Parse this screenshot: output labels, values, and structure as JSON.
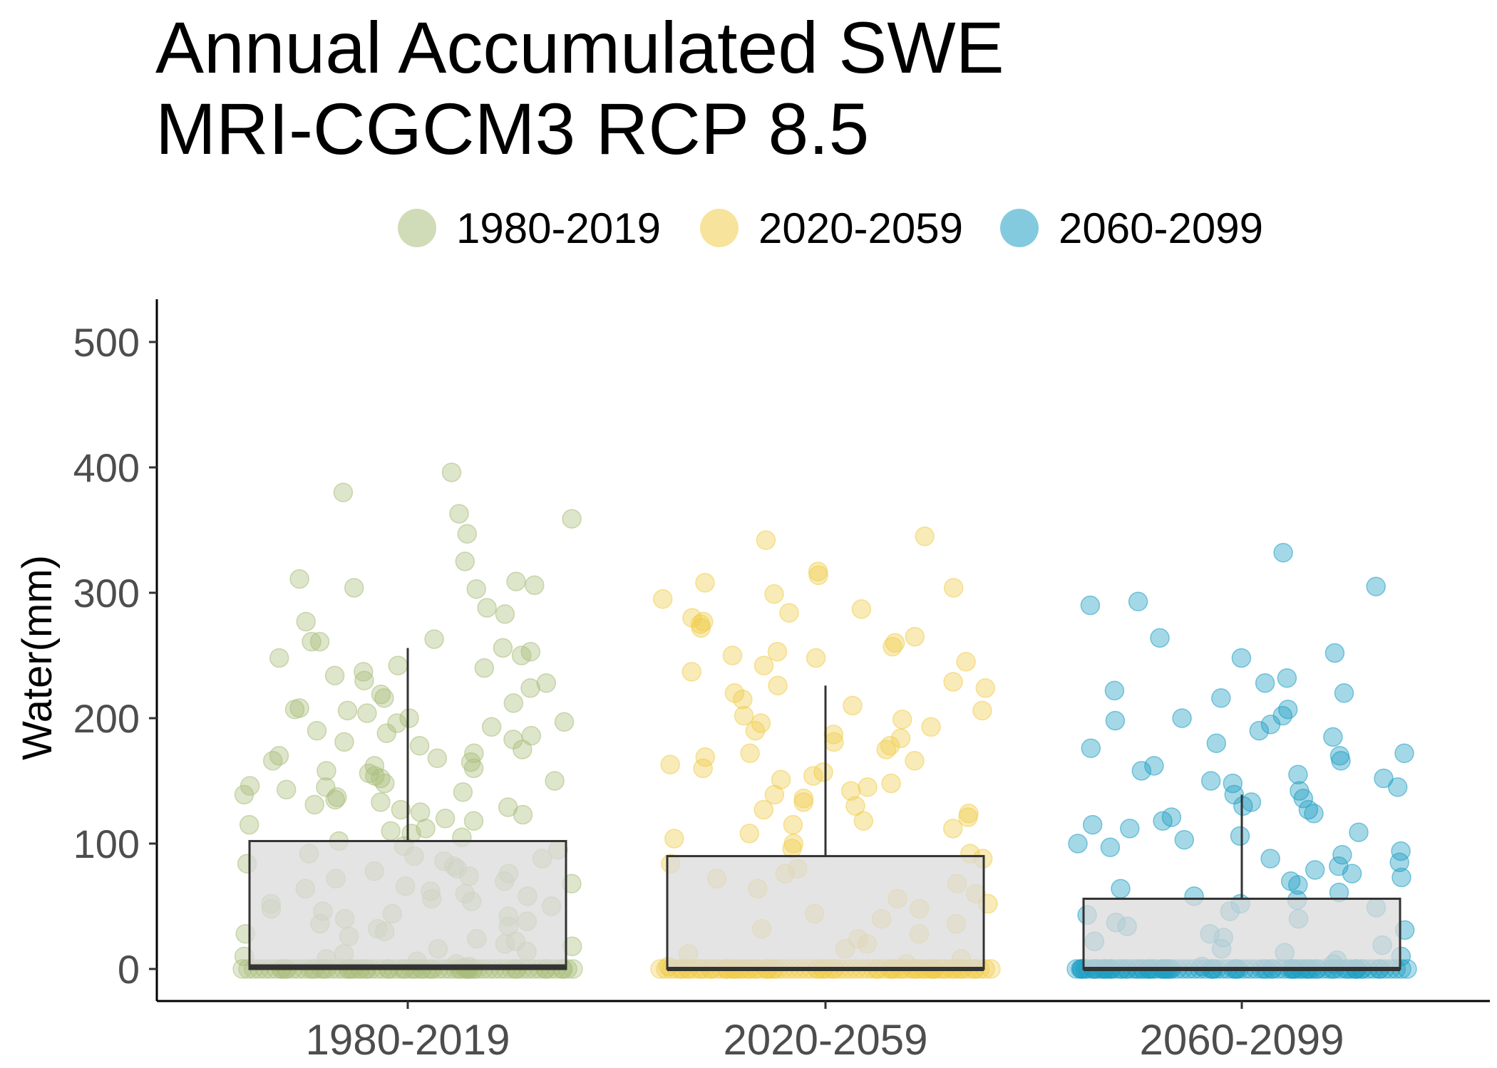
{
  "title_lines": [
    "Annual Accumulated SWE",
    "MRI-CGCM3 RCP 8.5"
  ],
  "legend": [
    {
      "label": "1980-2019",
      "color": "#a9be7b"
    },
    {
      "label": "2020-2059",
      "color": "#f0cc4a"
    },
    {
      "label": "2060-2099",
      "color": "#1e9ec4"
    }
  ],
  "chart_data": {
    "type": "box",
    "title": "Annual Accumulated SWE\nMRI-CGCM3 RCP 8.5",
    "xlabel": "",
    "ylabel": "Water(mm)",
    "ylim": [
      -25,
      525
    ],
    "yticks": [
      0,
      100,
      200,
      300,
      400,
      500
    ],
    "categories": [
      "1980-2019",
      "2020-2059",
      "2060-2099"
    ],
    "grid": false,
    "legend_position": "top",
    "boxes": [
      {
        "name": "1980-2019",
        "min": 0,
        "q1": 0,
        "median": 2,
        "q3": 102,
        "max": 256
      },
      {
        "name": "2020-2059",
        "min": 0,
        "q1": 0,
        "median": 0,
        "q3": 90,
        "max": 226
      },
      {
        "name": "2060-2099",
        "min": 0,
        "q1": 0,
        "median": 0,
        "q3": 56,
        "max": 139
      }
    ],
    "series": [
      {
        "name": "1980-2019",
        "values": [
          363,
          380,
          396,
          359,
          347,
          325,
          311,
          306,
          303,
          309,
          288,
          304,
          283,
          277,
          263,
          261,
          261,
          256,
          253,
          250,
          248,
          242,
          240,
          237,
          234,
          230,
          228,
          224,
          219,
          216,
          212,
          208,
          207,
          206,
          204,
          200,
          197,
          196,
          193,
          190,
          188,
          186,
          183,
          181,
          178,
          175,
          172,
          170,
          168,
          166,
          165,
          162,
          160,
          158,
          156,
          154,
          152,
          150,
          148,
          146,
          145,
          143,
          141,
          139,
          137,
          135,
          133,
          131,
          129,
          127,
          125,
          123,
          120,
          118,
          115,
          112,
          110,
          108,
          105,
          102,
          98,
          95,
          92,
          90,
          88,
          86,
          84,
          82,
          80,
          78,
          76,
          74,
          72,
          70,
          68,
          66,
          64,
          62,
          60,
          58,
          56,
          54,
          52,
          50,
          48,
          46,
          44,
          42,
          40,
          38,
          36,
          34,
          32,
          30,
          28,
          26,
          24,
          22,
          20,
          18,
          16,
          14,
          12,
          10,
          8,
          6,
          4,
          2,
          1,
          0,
          0,
          0,
          0,
          0,
          0,
          0,
          0,
          0,
          0,
          0,
          0,
          0,
          0,
          0,
          0,
          0,
          0,
          0,
          0,
          0
        ]
      },
      {
        "name": "2020-2059",
        "values": [
          345,
          342,
          317,
          314,
          308,
          304,
          299,
          295,
          287,
          284,
          280,
          277,
          275,
          272,
          265,
          260,
          257,
          253,
          250,
          248,
          245,
          242,
          237,
          229,
          226,
          224,
          220,
          215,
          210,
          206,
          202,
          199,
          196,
          193,
          190,
          187,
          184,
          181,
          178,
          175,
          172,
          169,
          166,
          163,
          160,
          157,
          154,
          151,
          148,
          145,
          142,
          139,
          136,
          133,
          130,
          127,
          124,
          121,
          118,
          115,
          112,
          108,
          104,
          100,
          96,
          92,
          88,
          84,
          80,
          76,
          72,
          68,
          64,
          60,
          56,
          52,
          48,
          44,
          40,
          36,
          32,
          28,
          24,
          20,
          16,
          12,
          8,
          4,
          2,
          0,
          0,
          0,
          0,
          0,
          0,
          0,
          0,
          0,
          0,
          0,
          0,
          0,
          0,
          0,
          0,
          0,
          0,
          0,
          0,
          0,
          0,
          0,
          0,
          0,
          0,
          0,
          0,
          0,
          0,
          0
        ]
      },
      {
        "name": "2060-2099",
        "values": [
          332,
          305,
          293,
          290,
          264,
          252,
          248,
          232,
          228,
          222,
          220,
          216,
          207,
          202,
          200,
          198,
          195,
          190,
          185,
          180,
          176,
          172,
          170,
          166,
          162,
          158,
          155,
          152,
          150,
          148,
          145,
          142,
          139,
          136,
          133,
          130,
          127,
          124,
          121,
          118,
          115,
          112,
          109,
          106,
          103,
          100,
          97,
          94,
          91,
          88,
          85,
          82,
          79,
          76,
          73,
          70,
          67,
          64,
          61,
          58,
          55,
          52,
          49,
          46,
          43,
          40,
          37,
          34,
          31,
          28,
          25,
          22,
          19,
          16,
          13,
          10,
          7,
          4,
          2,
          0,
          0,
          0,
          0,
          0,
          0,
          0,
          0,
          0,
          0,
          0,
          0,
          0,
          0,
          0,
          0,
          0,
          0,
          0,
          0,
          0,
          0,
          0,
          0,
          0,
          0,
          0,
          0,
          0,
          0,
          0,
          0,
          0,
          0,
          0,
          0,
          0,
          0,
          0,
          0,
          0
        ]
      }
    ]
  }
}
